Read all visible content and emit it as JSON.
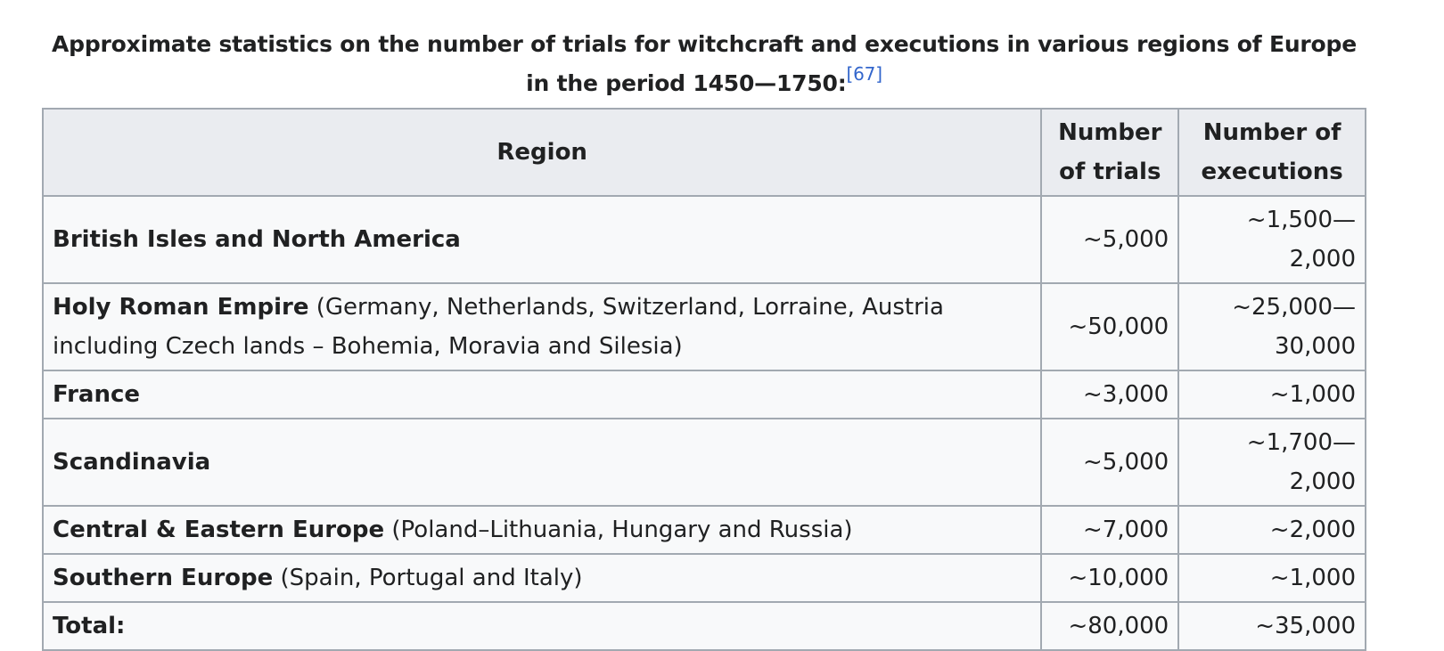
{
  "caption": {
    "text": "Approximate statistics on the number of trials for witchcraft and executions in various regions of Europe in the period 1450—1750:",
    "ref": "[67]"
  },
  "headers": {
    "region": "Region",
    "trials": "Number of trials",
    "executions": "Number of executions"
  },
  "rows": [
    {
      "region": "British Isles and North America",
      "detail": "",
      "trials": "~5,000",
      "executions": "~1,500—2,000"
    },
    {
      "region": "Holy Roman Empire",
      "detail": " (Germany, Netherlands, Switzerland, Lorraine, Austria including Czech lands – Bohemia, Moravia and Silesia)",
      "trials": "~50,000",
      "executions": "~25,000—30,000"
    },
    {
      "region": "France",
      "detail": "",
      "trials": "~3,000",
      "executions": "~1,000"
    },
    {
      "region": "Scandinavia",
      "detail": "",
      "trials": "~5,000",
      "executions": "~1,700—2,000"
    },
    {
      "region": "Central & Eastern Europe",
      "detail": " (Poland–Lithuania, Hungary and Russia)",
      "trials": "~7,000",
      "executions": "~2,000"
    },
    {
      "region": "Southern Europe",
      "detail": " (Spain, Portugal and Italy)",
      "trials": "~10,000",
      "executions": "~1,000"
    },
    {
      "region": "Total:",
      "detail": "",
      "trials": "~80,000",
      "executions": "~35,000"
    }
  ]
}
